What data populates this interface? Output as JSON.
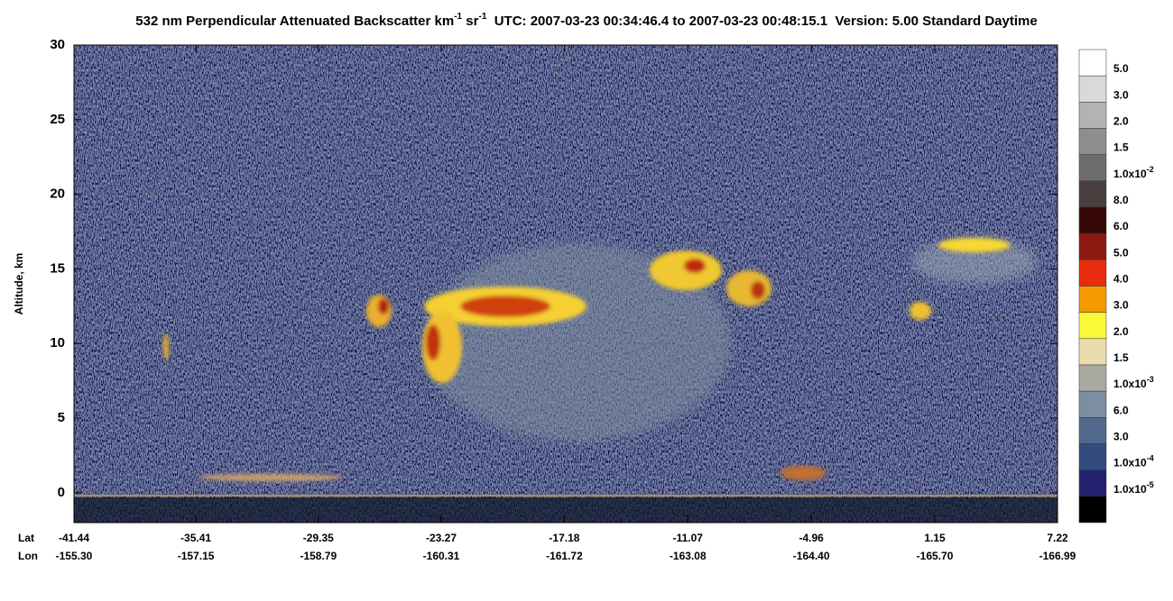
{
  "chart_data": {
    "type": "heatmap",
    "title": [
      {
        "text": "532 nm Perpendicular Attenuated Backscatter km"
      },
      {
        "text": "-1",
        "sup": true
      },
      {
        "text": " sr"
      },
      {
        "text": "-1",
        "sup": true
      },
      {
        "text": "  UTC: 2007-03-23 00:34:46.4 to 2007-03-23 00:48:15.1  Version: 5.00 Standard Daytime"
      }
    ],
    "ylabel": "Altitude, km",
    "ylim": [
      -2,
      30
    ],
    "yticks": [
      0,
      5,
      10,
      15,
      20,
      25,
      30
    ],
    "xlim": [
      -41.44,
      7.22
    ],
    "x_rows": [
      {
        "name": "Lat",
        "ticks": [
          -41.44,
          -35.41,
          -29.35,
          -23.27,
          -17.18,
          -11.07,
          -4.96,
          1.15,
          7.22
        ]
      },
      {
        "name": "Lon",
        "ticks": [
          {
            "value": -155.3,
            "label": "-155.30"
          },
          -157.15,
          -158.79,
          -160.31,
          -161.72,
          -163.08,
          {
            "value": -164.4,
            "label": "-164.40"
          },
          {
            "value": -165.7,
            "label": "-165.70"
          },
          -166.99
        ]
      }
    ],
    "colorbar_colors": [
      "#ffffff",
      "#d9d9d9",
      "#b3b3b3",
      "#8e8e8e",
      "#6d6d6d",
      "#4a4040",
      "#360808",
      "#8c1a12",
      "#e62d0e",
      "#f59b00",
      "#f9f93a",
      "#eadcac",
      "#a9aaa2",
      "#7d8ea0",
      "#51698c",
      "#344b80",
      "#22226e",
      "#000000"
    ],
    "colorbar_labels": [
      {
        "value": 0.05,
        "label": "5.0"
      },
      {
        "value": 0.03,
        "label": "3.0"
      },
      {
        "value": 0.02,
        "label": "2.0"
      },
      {
        "value": 0.015,
        "label": "1.5"
      },
      {
        "value": 0.01,
        "label": "1.0x10",
        "sup": "-2"
      },
      {
        "value": 0.008,
        "label": "8.0"
      },
      {
        "value": 0.006,
        "label": "6.0"
      },
      {
        "value": 0.005,
        "label": "5.0"
      },
      {
        "value": 0.004,
        "label": "4.0"
      },
      {
        "value": 0.003,
        "label": "3.0"
      },
      {
        "value": 0.002,
        "label": "2.0"
      },
      {
        "value": 0.0015,
        "label": "1.5"
      },
      {
        "value": 0.001,
        "label": "1.0x10",
        "sup": "-3"
      },
      {
        "value": 0.0006,
        "label": "6.0"
      },
      {
        "value": 0.0003,
        "label": "3.0"
      },
      {
        "value": 0.0001,
        "label": "1.0x10",
        "sup": "-4"
      },
      {
        "value": 1e-05,
        "label": "1.0x10",
        "sup": "-5"
      }
    ]
  }
}
